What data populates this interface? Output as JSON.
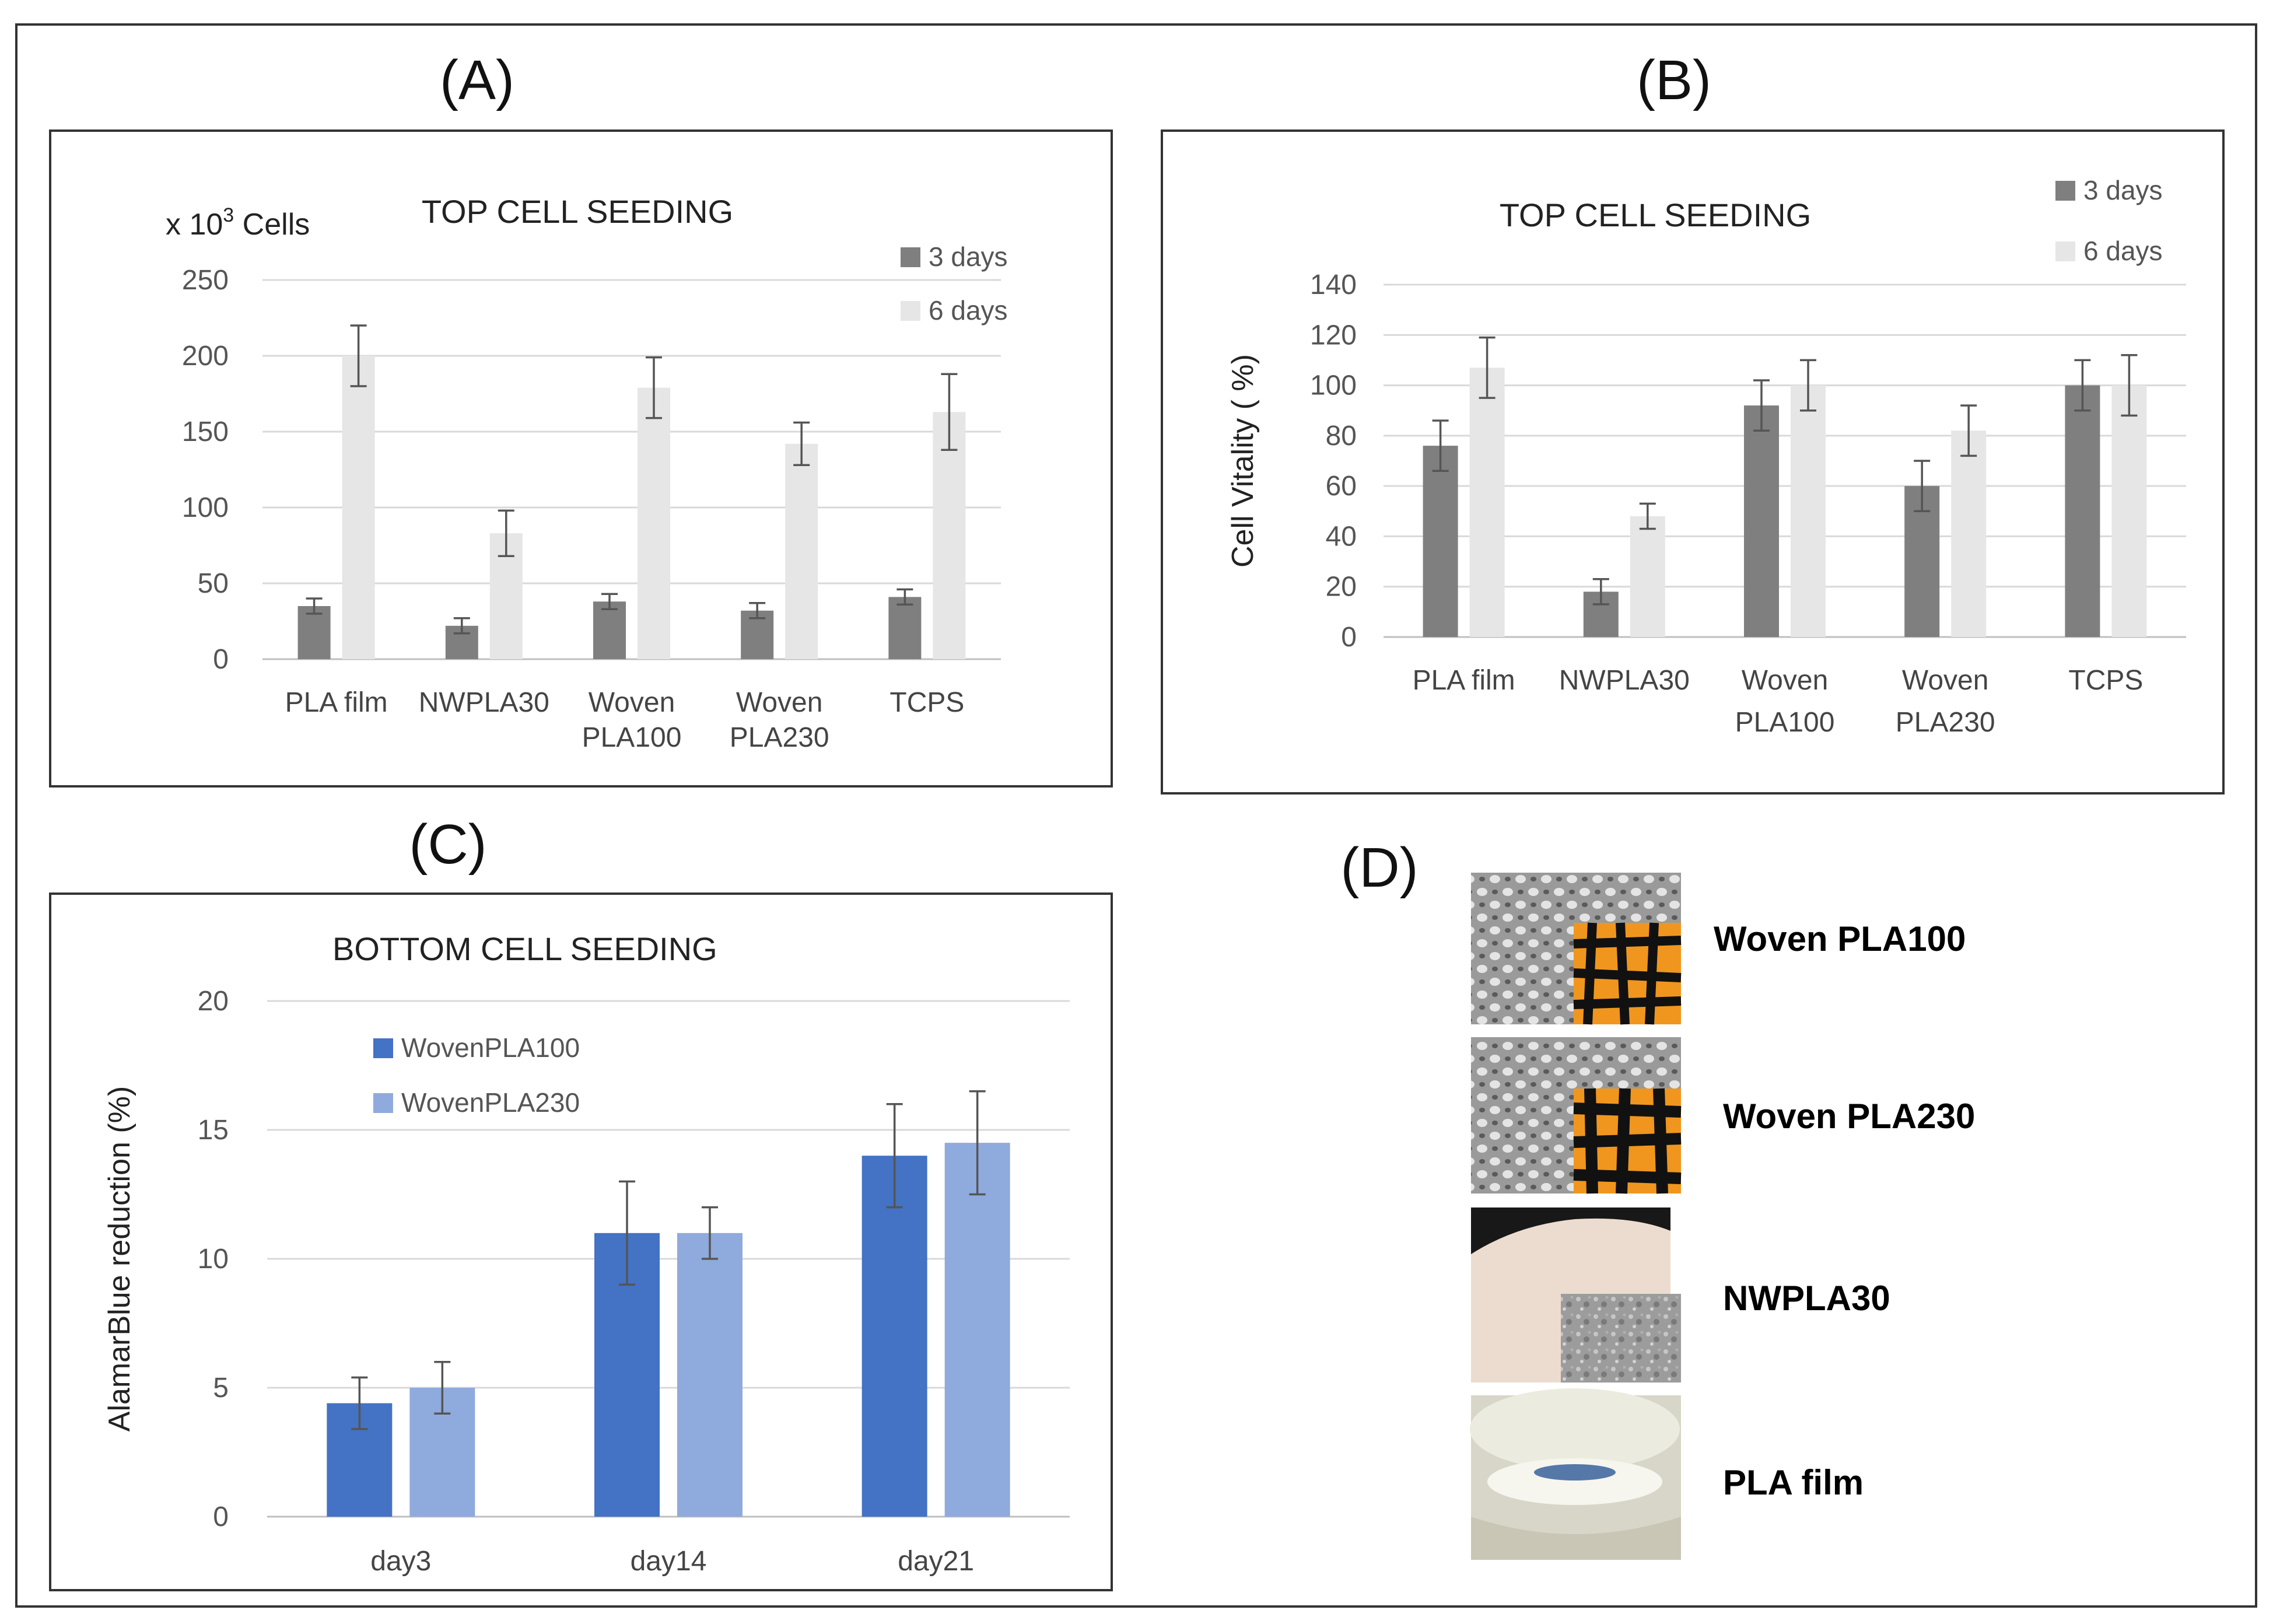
{
  "panels": {
    "a": "(A)",
    "b": "(B)",
    "c": "(C)",
    "d": "(D)"
  },
  "chart_data": [
    {
      "id": "A",
      "type": "bar",
      "title": "TOP CELL SEEDING",
      "ylabel_prefix": "x 10",
      "ylabel_sup": "3",
      "ylabel_suffix": " Cells",
      "ylim": [
        0,
        250
      ],
      "yticks": [
        "0",
        "50",
        "100",
        "150",
        "200",
        "250"
      ],
      "grid": true,
      "legend_position": "top-right",
      "categories": [
        [
          "PLA film"
        ],
        [
          "NWPLA30"
        ],
        [
          "Woven",
          "PLA100"
        ],
        [
          "Woven",
          "PLA230"
        ],
        [
          "TCPS"
        ]
      ],
      "series": [
        {
          "name": "3 days",
          "color": "#7f7f7f",
          "values": [
            35,
            22,
            38,
            32,
            41
          ],
          "errors": [
            5,
            5,
            5,
            5,
            5
          ]
        },
        {
          "name": "6 days",
          "color": "#e6e6e6",
          "values": [
            200,
            83,
            179,
            142,
            163
          ],
          "errors": [
            20,
            15,
            20,
            14,
            25
          ]
        }
      ]
    },
    {
      "id": "B",
      "type": "bar",
      "title": "TOP CELL SEEDING",
      "ylabel": "Cell Vitality ( %)",
      "ylim": [
        0,
        140
      ],
      "yticks": [
        "0",
        "20",
        "40",
        "60",
        "80",
        "100",
        "120",
        "140"
      ],
      "grid": true,
      "legend_position": "top-right",
      "categories": [
        [
          "PLA film"
        ],
        [
          "NWPLA30"
        ],
        [
          "Woven",
          "PLA100"
        ],
        [
          "Woven",
          "PLA230"
        ],
        [
          "TCPS"
        ]
      ],
      "series": [
        {
          "name": "3 days",
          "color": "#7f7f7f",
          "values": [
            76,
            18,
            92,
            60,
            100
          ],
          "errors": [
            10,
            5,
            10,
            10,
            10
          ]
        },
        {
          "name": "6 days",
          "color": "#e6e6e6",
          "values": [
            107,
            48,
            100,
            82,
            100
          ],
          "errors": [
            12,
            5,
            10,
            10,
            12
          ]
        }
      ]
    },
    {
      "id": "C",
      "type": "bar",
      "title": "BOTTOM CELL SEEDING",
      "ylabel": "AlamarBlue reduction (%)",
      "ylim": [
        0,
        20
      ],
      "yticks": [
        "0",
        "5",
        "10",
        "15",
        "20"
      ],
      "grid": true,
      "legend_position": "top-left",
      "categories": [
        [
          "day3"
        ],
        [
          "day14"
        ],
        [
          "day21"
        ]
      ],
      "series": [
        {
          "name": "WovenPLA100",
          "color": "#4472c4",
          "values": [
            4.4,
            11,
            14
          ],
          "errors": [
            1,
            2,
            2
          ]
        },
        {
          "name": "WovenPLA230",
          "color": "#8faadc",
          "values": [
            5,
            11,
            14.5
          ],
          "errors": [
            1,
            1,
            2
          ]
        }
      ]
    }
  ],
  "photos": [
    {
      "label": "Woven PLA100",
      "icon": "woven-fabric-photo"
    },
    {
      "label": "Woven PLA230",
      "icon": "woven-fabric-photo"
    },
    {
      "label": "NWPLA30",
      "icon": "nonwoven-fabric-photo"
    },
    {
      "label": "PLA film",
      "icon": "film-dish-photo"
    }
  ]
}
